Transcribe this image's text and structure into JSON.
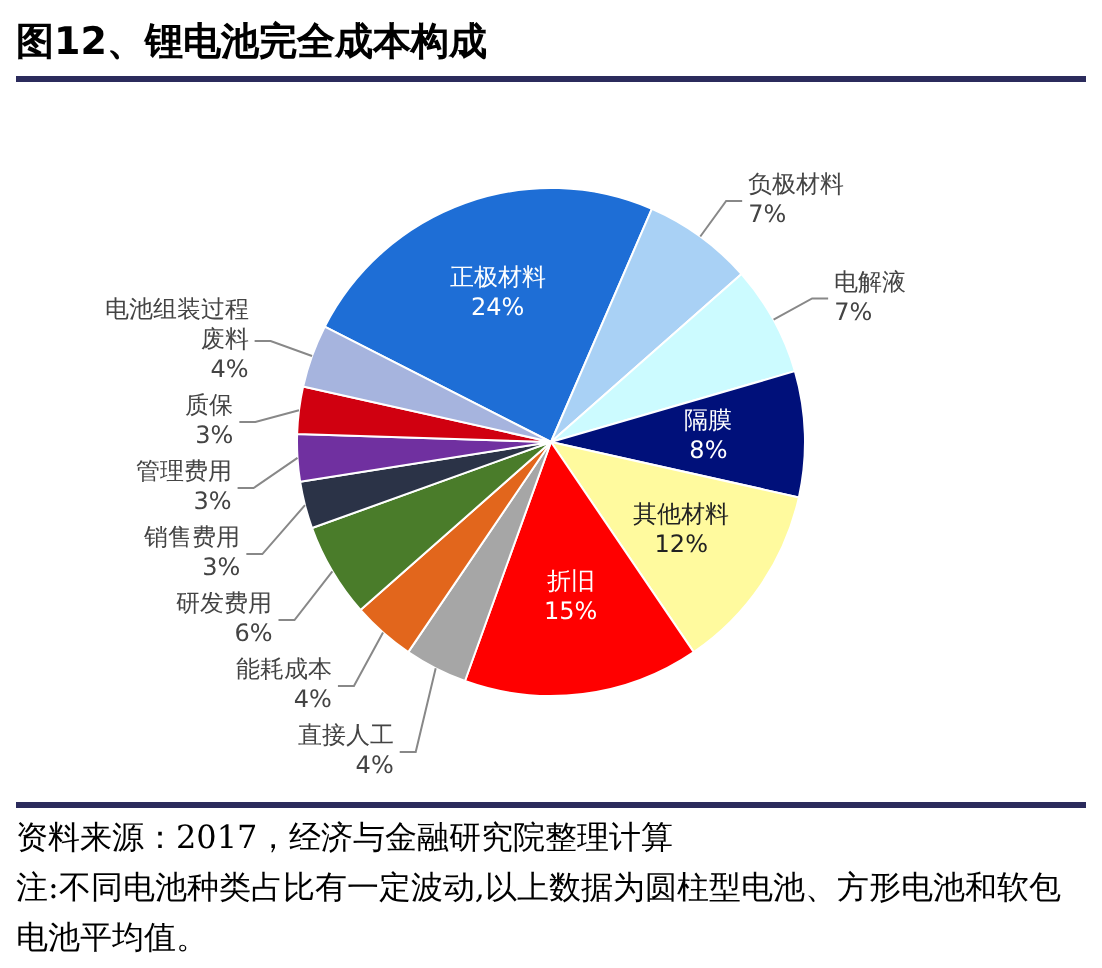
{
  "chart_data": {
    "type": "pie",
    "title": "图12、锂电池完全成本构成",
    "categories": [
      "正极材料",
      "负极材料",
      "电解液",
      "隔膜",
      "其他材料",
      "折旧",
      "直接人工",
      "能耗成本",
      "研发费用",
      "销售费用",
      "管理费用",
      "质保",
      "电池组装过程废料"
    ],
    "values": [
      24,
      7,
      7,
      8,
      12,
      15,
      4,
      4,
      6,
      3,
      3,
      3,
      4
    ],
    "value_labels": [
      "24%",
      "7%",
      "7%",
      "8%",
      "12%",
      "15%",
      "4%",
      "4%",
      "6%",
      "3%",
      "3%",
      "3%",
      "4%"
    ],
    "colors": [
      "#1e6ed6",
      "#a9d1f5",
      "#ccfbff",
      "#00107a",
      "#fffa9e",
      "#ff0000",
      "#a6a6a6",
      "#e2661c",
      "#4a7c2a",
      "#2b3347",
      "#7030a0",
      "#d00010",
      "#a6b4de"
    ],
    "legend": false,
    "annotations": [
      "资料来源：2017，经济与金融研究院整理计算",
      "注:不同电池种类占比有一定波动,以上数据为圆柱型电池、方形电池和软包电池平均值。"
    ]
  }
}
